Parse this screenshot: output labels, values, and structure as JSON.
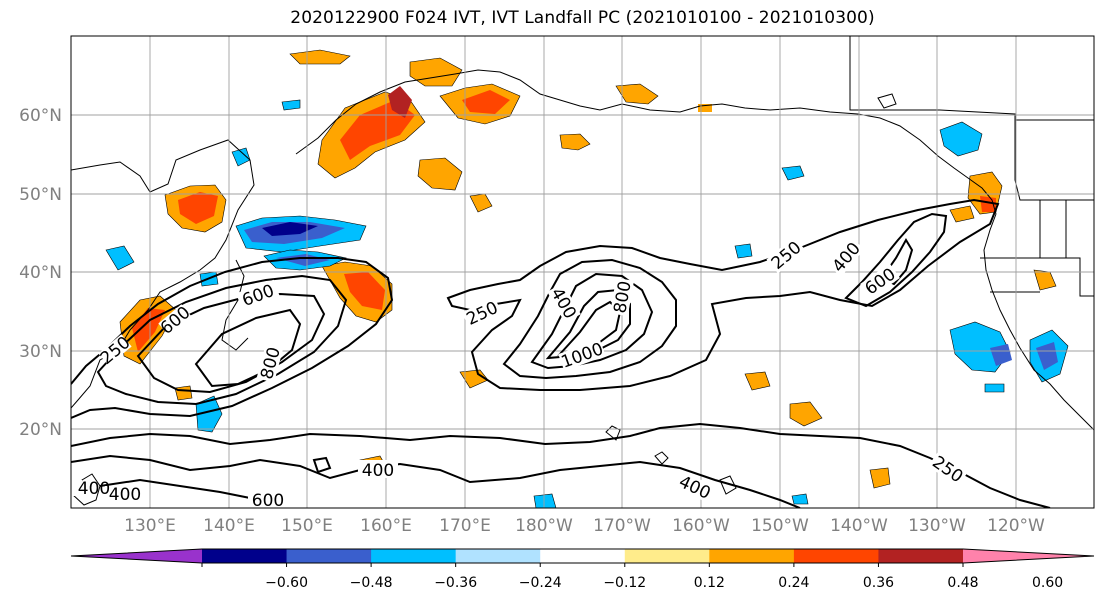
{
  "title": "2020122900 F024 IVT, IVT Landfall PC (2021010100 - 2021010300)",
  "latitude_labels": [
    "60°N",
    "50°N",
    "40°N",
    "30°N",
    "20°N"
  ],
  "longitude_labels": [
    "130°E",
    "140°E",
    "150°E",
    "160°E",
    "170°E",
    "180°W",
    "170°W",
    "160°W",
    "150°W",
    "140°W",
    "130°W",
    "120°W"
  ],
  "contour_labels": [
    "250",
    "250",
    "250",
    "250",
    "400",
    "400",
    "400",
    "400",
    "400",
    "600",
    "600",
    "600",
    "600",
    "800",
    "800",
    "1000",
    "400"
  ],
  "colorbar": {
    "colors": [
      "#9932cc",
      "#00008b",
      "#3a5fcd",
      "#00bfff",
      "#b0e2ff",
      "#ffffff",
      "#ffec8b",
      "#ffa500",
      "#ff4500",
      "#b22222",
      "#ff82ab"
    ],
    "tick_labels": [
      "−0.60",
      "−0.48",
      "−0.36",
      "−0.24",
      "−0.12",
      "0.12",
      "0.24",
      "0.36",
      "0.48",
      "0.60"
    ]
  },
  "colors": {
    "grid": "#a0a0a0",
    "axis_label": "#808080",
    "contour": "#000000"
  }
}
